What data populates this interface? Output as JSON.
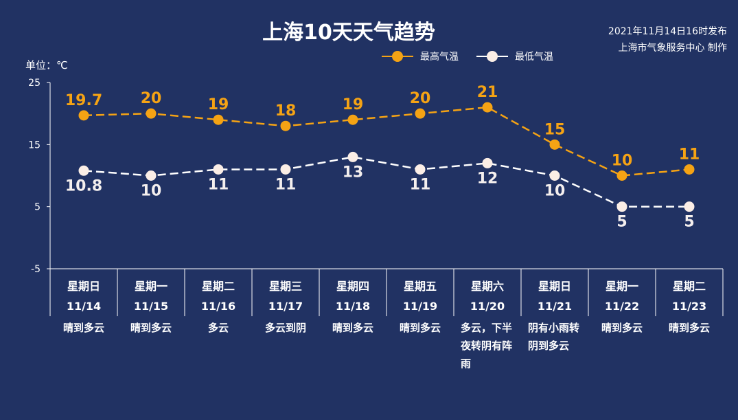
{
  "header": {
    "title": "上海10天天气趋势",
    "publish_line1": "2021年11月14日16时发布",
    "publish_line2": "上海市气象服务中心 制作",
    "unit": "单位：℃"
  },
  "legend": [
    {
      "label": "最高气温",
      "color": "#f5a314"
    },
    {
      "label": "最低气温",
      "color": "#ffffff"
    }
  ],
  "chart_data": {
    "type": "line",
    "ylim": [
      -5,
      25
    ],
    "yticks": [
      "25",
      "15",
      "5",
      "-5"
    ],
    "yticks_values": [
      25,
      15,
      5,
      -5
    ],
    "categories": [
      "星期日 11/14",
      "星期一 11/15",
      "星期二 11/16",
      "星期三 11/17",
      "星期四 11/18",
      "星期五 11/19",
      "星期六 11/20",
      "星期日 11/21",
      "星期一 11/22",
      "星期二 11/23"
    ],
    "series": [
      {
        "name": "最高气温",
        "color": "#f5a314",
        "values": [
          19.7,
          20,
          19,
          18,
          19,
          20,
          21,
          15,
          10,
          11
        ],
        "labels": [
          "19.7",
          "20",
          "19",
          "18",
          "19",
          "20",
          "21",
          "15",
          "10",
          "11"
        ]
      },
      {
        "name": "最低气温",
        "color": "#ffffff",
        "values": [
          10.8,
          10,
          11,
          11,
          13,
          11,
          12,
          10,
          5,
          5
        ],
        "labels": [
          "10.8",
          "10",
          "11",
          "11",
          "13",
          "11",
          "12",
          "10",
          "5",
          "5"
        ]
      }
    ],
    "grid": false,
    "legend_position": "top-right"
  },
  "days": [
    {
      "weekday": "星期日",
      "date": "11/14",
      "weather": "晴到多云"
    },
    {
      "weekday": "星期一",
      "date": "11/15",
      "weather": "晴到多云"
    },
    {
      "weekday": "星期二",
      "date": "11/16",
      "weather": "多云"
    },
    {
      "weekday": "星期三",
      "date": "11/17",
      "weather": "多云到阴"
    },
    {
      "weekday": "星期四",
      "date": "11/18",
      "weather": "晴到多云"
    },
    {
      "weekday": "星期五",
      "date": "11/19",
      "weather": "晴到多云"
    },
    {
      "weekday": "星期六",
      "date": "11/20",
      "weather": "多云，下半夜转阴有阵雨"
    },
    {
      "weekday": "星期日",
      "date": "11/21",
      "weather": "阴有小雨转阴到多云"
    },
    {
      "weekday": "星期一",
      "date": "11/22",
      "weather": "晴到多云"
    },
    {
      "weekday": "星期二",
      "date": "11/23",
      "weather": "晴到多云"
    }
  ]
}
